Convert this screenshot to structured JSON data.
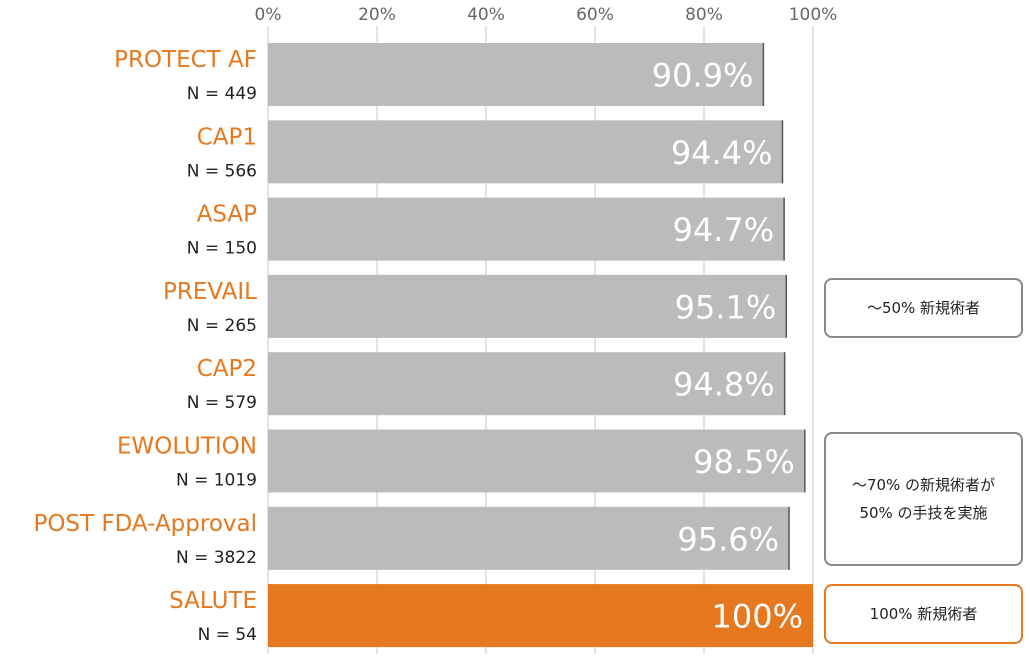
{
  "chart_data": {
    "type": "bar",
    "orientation": "horizontal",
    "xlim": [
      0,
      100
    ],
    "x_ticks": [
      "0%",
      "20%",
      "40%",
      "60%",
      "80%",
      "100%"
    ],
    "grid": true,
    "categories": [
      {
        "label": "PROTECT AF",
        "n": "N = 449",
        "value": 90.9,
        "value_label": "90.9%"
      },
      {
        "label": "CAP1",
        "n": "N = 566",
        "value": 94.4,
        "value_label": "94.4%"
      },
      {
        "label": "ASAP",
        "n": "N = 150",
        "value": 94.7,
        "value_label": "94.7%"
      },
      {
        "label": "PREVAIL",
        "n": "N = 265",
        "value": 95.1,
        "value_label": "95.1%"
      },
      {
        "label": "CAP2",
        "n": "N = 579",
        "value": 94.8,
        "value_label": "94.8%"
      },
      {
        "label": "EWOLUTION",
        "n": "N = 1019",
        "value": 98.5,
        "value_label": "98.5%"
      },
      {
        "label": "POST FDA-Approval",
        "n": "N = 3822",
        "value": 95.6,
        "value_label": "95.6%"
      },
      {
        "label": "SALUTE",
        "n": "N = 54",
        "value": 100,
        "value_label": "100%",
        "highlight": true
      }
    ]
  },
  "callouts": [
    {
      "lines": [
        "～50% 新規術者"
      ]
    },
    {
      "lines": [
        "～70% の新規術者が",
        "50% の手技を実施"
      ]
    },
    {
      "lines": [
        "100% 新規術者"
      ],
      "highlight": true
    }
  ],
  "colors": {
    "bar": "#bbbbbd",
    "bar_highlight": "#e6781f",
    "category_label": "#e6781f",
    "n_label": "#222222",
    "tick_label": "#666666",
    "grid": "#c8c8c8",
    "value_label": "#ffffff",
    "callout_border": "#888888",
    "callout_border_highlight": "#e6781f"
  }
}
